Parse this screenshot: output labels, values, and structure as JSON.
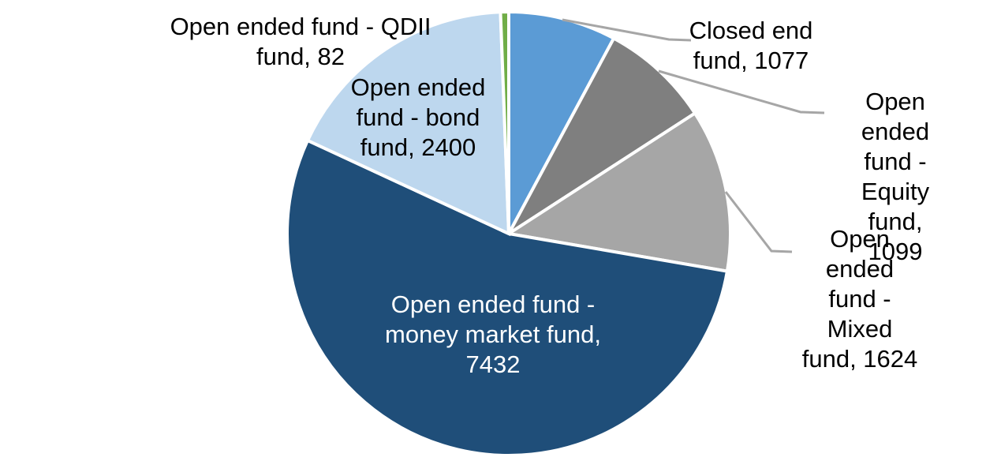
{
  "chart_data": {
    "type": "pie",
    "title": "",
    "categories": [
      "Closed end fund",
      "Open ended fund - Equity fund",
      "Open ended fund - Mixed fund",
      "Open ended fund - money market fund",
      "Open ended fund - bond fund",
      "Open ended fund - QDII fund"
    ],
    "values": [
      1077,
      1099,
      1624,
      7432,
      2400,
      82
    ],
    "total": 13714,
    "colors": [
      "#5B9BD5",
      "#7F7F7F",
      "#A6A6A6",
      "#1F4E79",
      "#BDD7EE",
      "#70AD47"
    ],
    "start_angle_deg": 0,
    "direction": "clockwise",
    "slice_border_color": "#FFFFFF",
    "leader_line_color": "#A6A6A6",
    "legend_position": "none",
    "data_label_format": "category, value"
  },
  "labels": {
    "closed_end": {
      "text": "Closed end\nfund, 1077"
    },
    "equity": {
      "text": "Open ended\nfund - Equity\nfund, 1099"
    },
    "mixed": {
      "text": "Open ended\nfund - Mixed\nfund, 1624"
    },
    "money_market": {
      "text": "Open ended fund -\nmoney market fund,\n7432"
    },
    "bond": {
      "text": "Open ended\nfund - bond\nfund, 2400"
    },
    "qdii": {
      "text": "Open ended fund - QDII\nfund, 82"
    }
  }
}
